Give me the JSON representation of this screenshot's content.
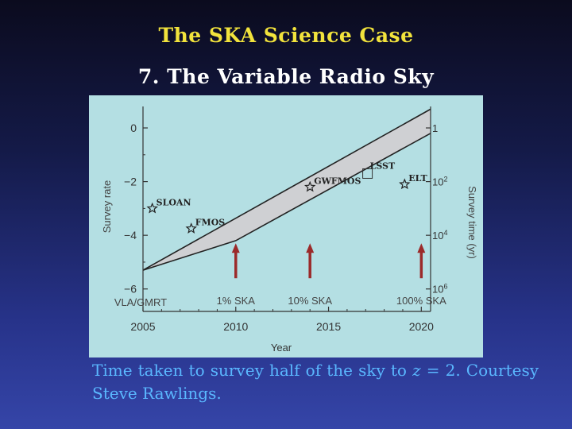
{
  "slide": {
    "title": "The SKA Science Case",
    "subtitle": "7.  The Variable Radio Sky"
  },
  "caption": {
    "part1": "Time taken to survey half of the sky to ",
    "math": "z",
    "part2": " = 2. Courtesy Steve Rawlings."
  },
  "chart_data": {
    "type": "line",
    "xlabel": "Year",
    "ylabel": "Survey rate",
    "ylabel_right": "Survey time (yr)",
    "xlim": [
      2005,
      2020.5
    ],
    "ylim": [
      -6.6,
      0.8
    ],
    "x_ticks": [
      2005,
      2010,
      2015,
      2020
    ],
    "y_ticks": [
      0,
      -2,
      -4,
      -6
    ],
    "y_tick_labels": [
      "0",
      "−2",
      "−4",
      "−6"
    ],
    "right_ticks": [
      {
        "y": 0,
        "base": "1",
        "exp": ""
      },
      {
        "y": -2,
        "base": "10",
        "exp": "2"
      },
      {
        "y": -4,
        "base": "10",
        "exp": "4"
      },
      {
        "y": -6,
        "base": "10",
        "exp": "6"
      }
    ],
    "band_upper": [
      [
        2005,
        -5.3
      ],
      [
        2020.5,
        0.7
      ]
    ],
    "band_lower": [
      [
        2005,
        -5.3
      ],
      [
        2010,
        -4.2
      ],
      [
        2020.5,
        -0.2
      ]
    ],
    "points": [
      {
        "name": "SLOAN",
        "x": 2005.5,
        "y": -3.0
      },
      {
        "name": "FMOS",
        "x": 2007.6,
        "y": -3.75
      },
      {
        "name": "GWFMOS",
        "x": 2014.0,
        "y": -2.2
      },
      {
        "name": "ELT",
        "x": 2019.1,
        "y": -2.1
      }
    ],
    "open_points": [
      {
        "name": "LSST",
        "x": 2017.1,
        "y": -1.7
      }
    ],
    "arrows": [
      {
        "x": 2010.0,
        "y_base": -5.6,
        "y_tip": -4.3,
        "label": "1% SKA"
      },
      {
        "x": 2014.0,
        "y_base": -5.6,
        "y_tip": -4.3,
        "label": "10% SKA"
      },
      {
        "x": 2020.0,
        "y_base": -5.6,
        "y_tip": -4.3,
        "label": "100% SKA"
      }
    ],
    "baseline_label": "VLA/GMRT",
    "colors": {
      "plot_bg": "#b4dfe3",
      "band_fill": "#cfd0d3",
      "line": "#222222",
      "arrow": "#9b2a2a"
    }
  }
}
